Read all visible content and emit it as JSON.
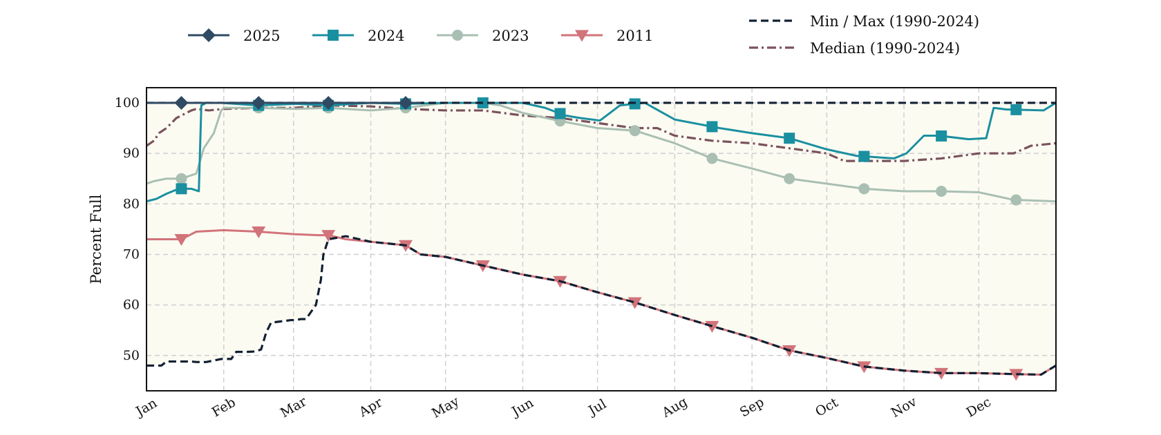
{
  "chart_data": {
    "type": "line",
    "title": "",
    "xlabel": "",
    "ylabel": "Percent Full",
    "ylim": [
      43,
      103
    ],
    "xlim": [
      0,
      365
    ],
    "x_tick_labels": [
      "Jan",
      "Feb",
      "Mar",
      "Apr",
      "May",
      "Jun",
      "Jul",
      "Aug",
      "Sep",
      "Oct",
      "Nov",
      "Dec"
    ],
    "x_tick_days": [
      0,
      31,
      59,
      90,
      120,
      151,
      181,
      212,
      243,
      273,
      304,
      334
    ],
    "y_ticks": [
      50,
      60,
      70,
      80,
      90,
      100
    ],
    "grid": true,
    "legend_position": "top",
    "colors": {
      "s2025": "#2f4a62",
      "s2024": "#1a8fa0",
      "s2023": "#a9bfb2",
      "s2011": "#d2737a",
      "minmax": "#132033",
      "median": "#7a525b",
      "band": "#fbfbf2"
    },
    "series": [
      {
        "name": "2025",
        "marker": "diamond",
        "style": "solid",
        "x": [
          0,
          5,
          14,
          30,
          45,
          60,
          73,
          90,
          104,
          110
        ],
        "y": [
          100,
          100,
          100,
          100,
          100,
          100,
          100,
          100,
          100,
          100
        ]
      },
      {
        "name": "2024",
        "marker": "square",
        "style": "solid",
        "x": [
          0,
          4,
          8,
          12,
          14,
          18,
          21,
          22,
          24,
          30,
          45,
          60,
          73,
          90,
          104,
          120,
          135,
          151,
          160,
          168,
          174,
          182,
          190,
          200,
          212,
          230,
          243,
          258,
          273,
          285,
          300,
          305,
          312,
          318,
          330,
          337,
          340,
          345,
          360,
          365
        ],
        "y": [
          80.5,
          81,
          82,
          82.8,
          83,
          83,
          82.5,
          99.5,
          100,
          100,
          99.5,
          99.8,
          99.5,
          100,
          99.8,
          100,
          100,
          100,
          99,
          97.5,
          97,
          96.5,
          99.5,
          100,
          96.7,
          95,
          94,
          93,
          90.8,
          89.5,
          89,
          90,
          93.5,
          93.5,
          92.8,
          93,
          99,
          98.7,
          98.5,
          100
        ]
      },
      {
        "name": "2023",
        "marker": "circle",
        "style": "solid",
        "x": [
          0,
          3,
          8,
          14,
          20,
          23,
          27,
          30,
          31,
          45,
          60,
          73,
          90,
          104,
          120,
          135,
          142,
          151,
          165,
          181,
          196,
          212,
          227,
          243,
          258,
          273,
          288,
          304,
          319,
          334,
          348,
          365
        ],
        "y": [
          84,
          84.5,
          85,
          85,
          86,
          91,
          94,
          98.5,
          99,
          99,
          98.8,
          99,
          98.5,
          99,
          100,
          100,
          99.5,
          98,
          96.5,
          95,
          94.5,
          92,
          89,
          87,
          85,
          84,
          83,
          82.5,
          82.5,
          82.3,
          80.8,
          80.5
        ]
      },
      {
        "name": "2011",
        "marker": "triangle",
        "style": "solid",
        "x": [
          0,
          14,
          20,
          31,
          45,
          59,
          69,
          73,
          80,
          90,
          104,
          110,
          120,
          135,
          151,
          166,
          181,
          196,
          212,
          227,
          243,
          258,
          273,
          288,
          304,
          319,
          334,
          349,
          359,
          365
        ],
        "y": [
          73,
          73,
          74.5,
          74.8,
          74.5,
          74,
          73.8,
          73.8,
          73,
          72.5,
          71.8,
          70,
          69.5,
          67.8,
          66,
          64.7,
          62.5,
          60.5,
          58,
          55.8,
          53.5,
          51,
          49.5,
          47.8,
          47,
          46.5,
          46.5,
          46.3,
          46.2,
          48
        ]
      },
      {
        "name": "Min / Max (1990-2024)",
        "marker": "none",
        "style": "dashed",
        "x": [
          0,
          6,
          8,
          18,
          20,
          24,
          30,
          34,
          36,
          40,
          44,
          46,
          48,
          50,
          55,
          58,
          60,
          62,
          64,
          68,
          69,
          70,
          71,
          73,
          80,
          90,
          104,
          110,
          120,
          135,
          151,
          166,
          181,
          196,
          212,
          227,
          243,
          258,
          273,
          288,
          304,
          319,
          334,
          349,
          359,
          365
        ],
        "y": [
          48,
          48,
          48.8,
          48.8,
          48.7,
          48.7,
          49.3,
          49.3,
          50.7,
          50.7,
          50.8,
          51.2,
          54.5,
          56.5,
          56.8,
          57,
          57,
          57.2,
          57.2,
          60,
          62.5,
          65,
          70,
          73,
          73.6,
          72.5,
          71.8,
          70,
          69.5,
          67.8,
          66,
          64.7,
          62.5,
          60.5,
          58,
          55.8,
          53.5,
          51,
          49.5,
          47.8,
          47,
          46.5,
          46.5,
          46.3,
          46.2,
          48
        ]
      },
      {
        "name": "Median (1990-2024)",
        "marker": "none",
        "style": "dashdot",
        "x": [
          0,
          3,
          5,
          8,
          12,
          14,
          18,
          20,
          25,
          31,
          45,
          59,
          73,
          90,
          104,
          120,
          135,
          151,
          166,
          181,
          196,
          205,
          212,
          227,
          243,
          258,
          273,
          280,
          288,
          295,
          304,
          319,
          334,
          342,
          348,
          355,
          365
        ],
        "y": [
          91.5,
          92.5,
          94,
          95,
          97,
          97.5,
          98.5,
          98.8,
          98.5,
          98.8,
          99,
          99,
          99.5,
          99.3,
          98.8,
          98.5,
          98.5,
          97.5,
          97,
          96,
          95,
          95,
          93.5,
          92.5,
          92,
          91,
          90,
          88.5,
          88.5,
          88.5,
          88.5,
          89,
          90,
          90,
          90,
          91.5,
          92
        ]
      }
    ]
  }
}
